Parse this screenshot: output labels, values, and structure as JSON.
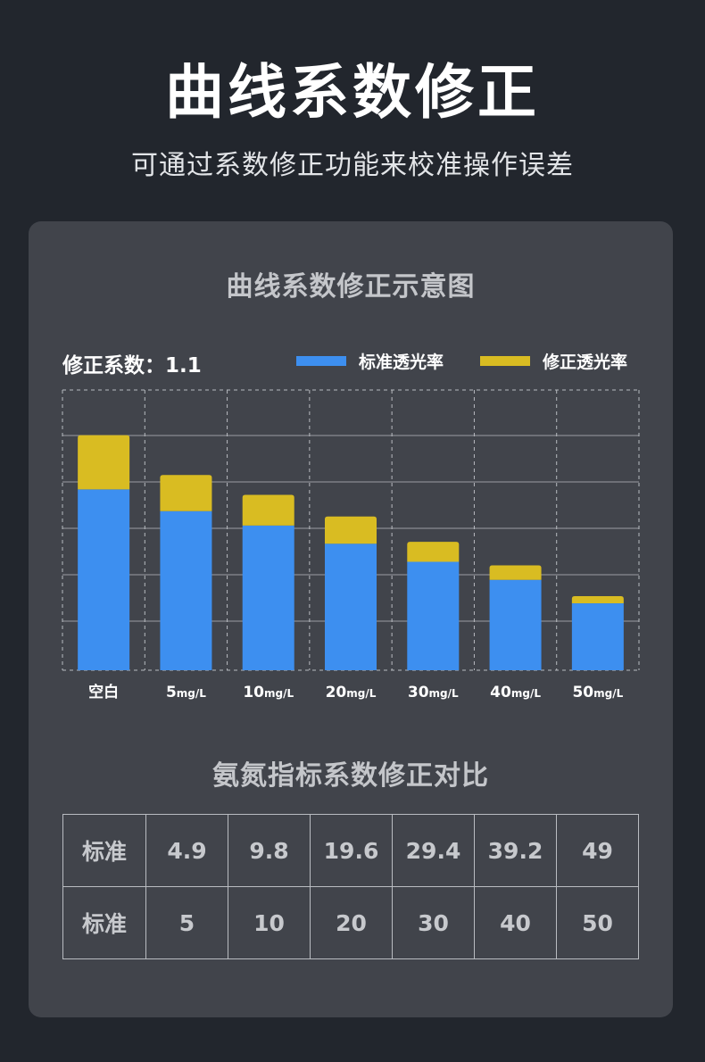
{
  "header": {
    "title": "曲线系数修正",
    "subtitle": "可通过系数修正功能来校准操作误差"
  },
  "panel": {
    "chart_title": "曲线系数修正示意图",
    "coefficient_label": "修正系数：1.1",
    "table_title": "氨氮指标系数修正对比"
  },
  "colors": {
    "standard": "#3d8ff0",
    "corrected": "#d9bc22"
  },
  "chart_data": {
    "type": "bar",
    "stacked": true,
    "categories": [
      "空白",
      "5",
      "10",
      "20",
      "30",
      "40",
      "50"
    ],
    "category_unit": "mg/L",
    "series": [
      {
        "name": "标准透光率",
        "values": [
          100,
          88,
          80,
          70,
          60,
          50,
          37
        ]
      },
      {
        "name": "修正透光率",
        "values": [
          30,
          20,
          17,
          15,
          11,
          8,
          4
        ]
      }
    ],
    "ylim": [
      0,
      155
    ],
    "grid": true,
    "legend_position": "top-right"
  },
  "comparison_table": {
    "rows": [
      {
        "label": "标准",
        "values": [
          "4.9",
          "9.8",
          "19.6",
          "29.4",
          "39.2",
          "49"
        ]
      },
      {
        "label": "标准",
        "values": [
          "5",
          "10",
          "20",
          "30",
          "40",
          "50"
        ]
      }
    ]
  }
}
